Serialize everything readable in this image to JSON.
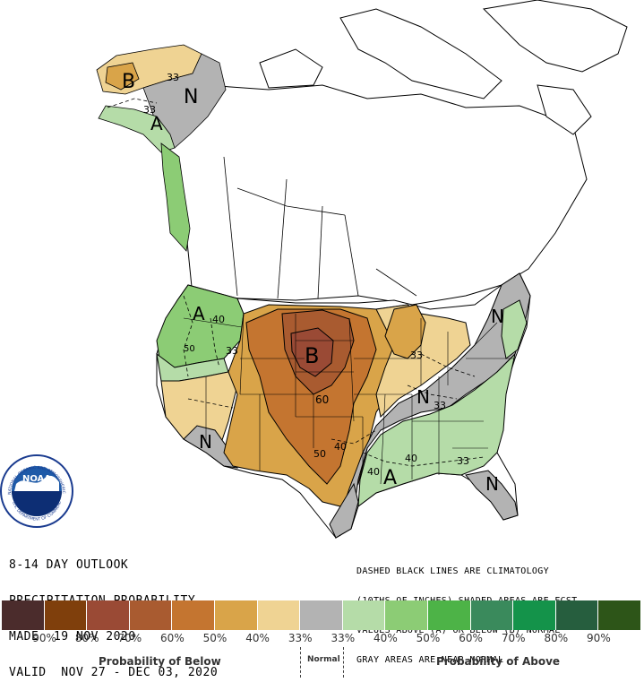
{
  "header": {
    "line1": "8-14 DAY OUTLOOK",
    "line2": "PRECIPITATION PROBABILITY",
    "line3": "MADE  19 NOV 2020",
    "line4": "VALID  NOV 27 - DEC 03, 2020"
  },
  "notes": {
    "line1": "DASHED BLACK LINES ARE CLIMATOLOGY",
    "line2": "(10THS OF INCHES) SHADED AREAS ARE FCST",
    "line3": "VALUES ABOVE (A) OR BELOW (B) NORMAL",
    "line4": "GRAY AREAS ARE NEAR-NORMAL"
  },
  "logo": {
    "text": "NOAA",
    "ring_text": "NATIONAL OCEANIC AND ATMOSPHERIC ADMINISTRATION",
    "bottom_text": "U.S. DEPARTMENT OF COMMERCE"
  },
  "map_labels": {
    "ak_b": "B",
    "ak_n": "N",
    "ak_a": "A",
    "ak_33a": "33",
    "ak_33b": "33",
    "nw_a": "A",
    "nw_40": "40",
    "nw_33": "33",
    "nw_50": "50",
    "plains_b": "B",
    "plains_60": "60",
    "sw_n": "N",
    "south_50": "50",
    "south_40": "40",
    "midwest_33": "33",
    "midwest_n": "N",
    "midwest_33b": "33",
    "ne_n": "N",
    "se_a": "A",
    "se_40a": "40",
    "se_40b": "40",
    "se_33": "33",
    "fl_n": "N"
  },
  "legend": {
    "swatches": [
      "#4b2c2c",
      "#7f3f0c",
      "#9a4a35",
      "#a95b30",
      "#c47530",
      "#d9a449",
      "#efd393",
      "#b3b3b3",
      "#b5dca8",
      "#8ccc75",
      "#4db347",
      "#3a8a5c",
      "#14934a",
      "#265e3e",
      "#2d5518"
    ],
    "labels": [
      "90%",
      "80%",
      "70%",
      "60%",
      "50%",
      "40%",
      "33%",
      "33%",
      "40%",
      "50%",
      "60%",
      "70%",
      "80%",
      "90%"
    ],
    "below_title": "Probability of Below",
    "normal_title": "Normal",
    "above_title": "Probability of Above"
  }
}
